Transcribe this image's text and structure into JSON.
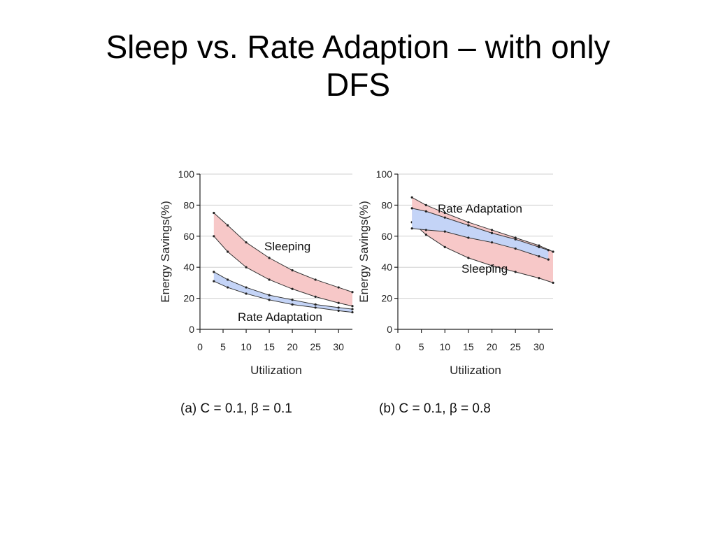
{
  "slide": {
    "title_line1": "Sleep vs. Rate Adaption – with only",
    "title_line2": "DFS"
  },
  "chart_data": [
    {
      "type": "area",
      "caption": "(a) C = 0.1, β = 0.1",
      "xlabel": "Utilization",
      "ylabel": "Energy Savings(%)",
      "xlim": [
        0,
        33
      ],
      "ylim": [
        0,
        100
      ],
      "xticks": [
        0,
        5,
        10,
        15,
        20,
        25,
        30
      ],
      "yticks": [
        0,
        20,
        40,
        60,
        80,
        100
      ],
      "grid": true,
      "bands": [
        {
          "name": "Sleeping",
          "fill": "#f7c8c8",
          "upper": [
            [
              3,
              75
            ],
            [
              6,
              67
            ],
            [
              10,
              56
            ],
            [
              15,
              46
            ],
            [
              20,
              38
            ],
            [
              25,
              32
            ],
            [
              30,
              27
            ],
            [
              33,
              24
            ]
          ],
          "lower": [
            [
              3,
              60
            ],
            [
              6,
              50
            ],
            [
              10,
              40
            ],
            [
              15,
              32
            ],
            [
              20,
              26
            ],
            [
              25,
              21
            ],
            [
              30,
              17
            ],
            [
              33,
              15
            ]
          ]
        },
        {
          "name": "Rate Adaptation",
          "fill": "#c4d4f7",
          "upper": [
            [
              3,
              37
            ],
            [
              6,
              32
            ],
            [
              10,
              27
            ],
            [
              15,
              22
            ],
            [
              20,
              19
            ],
            [
              25,
              16
            ],
            [
              30,
              14
            ],
            [
              33,
              13
            ]
          ],
          "lower": [
            [
              3,
              31
            ],
            [
              6,
              27
            ],
            [
              10,
              23
            ],
            [
              15,
              19
            ],
            [
              20,
              16
            ],
            [
              25,
              14
            ],
            [
              30,
              12
            ],
            [
              33,
              11
            ]
          ]
        }
      ],
      "annotations": [
        "Sleeping",
        "Rate Adaptation"
      ]
    },
    {
      "type": "area",
      "caption": "(b) C = 0.1, β = 0.8",
      "xlabel": "Utilization",
      "ylabel": "Energy Savings(%)",
      "xlim": [
        0,
        33
      ],
      "ylim": [
        0,
        100
      ],
      "xticks": [
        0,
        5,
        10,
        15,
        20,
        25,
        30
      ],
      "yticks": [
        0,
        20,
        40,
        60,
        80,
        100
      ],
      "grid": true,
      "bands": [
        {
          "name": "Sleeping",
          "fill": "#f7c8c8",
          "upper": [
            [
              3,
              85
            ],
            [
              6,
              80
            ],
            [
              10,
              75
            ],
            [
              15,
              69
            ],
            [
              20,
              64
            ],
            [
              25,
              59
            ],
            [
              30,
              54
            ],
            [
              33,
              50
            ]
          ],
          "lower": [
            [
              3,
              69
            ],
            [
              6,
              61
            ],
            [
              10,
              53
            ],
            [
              15,
              46
            ],
            [
              20,
              41
            ],
            [
              25,
              37
            ],
            [
              30,
              33
            ],
            [
              33,
              30
            ]
          ]
        },
        {
          "name": "Rate Adaptation",
          "fill": "#c4d4f7",
          "upper": [
            [
              3,
              78
            ],
            [
              6,
              76
            ],
            [
              10,
              72
            ],
            [
              15,
              67
            ],
            [
              20,
              62
            ],
            [
              25,
              58
            ],
            [
              30,
              53
            ],
            [
              32,
              51
            ]
          ],
          "lower": [
            [
              3,
              65
            ],
            [
              6,
              64
            ],
            [
              10,
              63
            ],
            [
              15,
              59
            ],
            [
              20,
              56
            ],
            [
              25,
              52
            ],
            [
              30,
              47
            ],
            [
              32,
              45
            ]
          ]
        }
      ],
      "annotations": [
        "Rate Adaptation",
        "Sleeping"
      ]
    }
  ]
}
